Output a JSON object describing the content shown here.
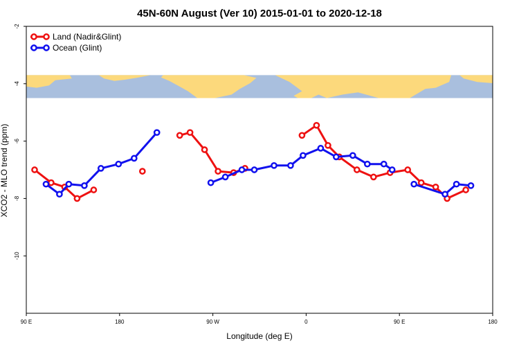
{
  "chart_data": {
    "type": "line",
    "title": "45N-60N August (Ver 10)   2015-01-01 to 2020-12-18",
    "xlabel": "Longitude (deg E)",
    "ylabel": "XCO2 - MLO trend (ppm)",
    "xlim": [
      90,
      540
    ],
    "ylim": [
      -12,
      -2
    ],
    "x_ticks": [
      {
        "value": 90,
        "label": "90 E"
      },
      {
        "value": 180,
        "label": "180"
      },
      {
        "value": 270,
        "label": "90 W"
      },
      {
        "value": 360,
        "label": "0"
      },
      {
        "value": 450,
        "label": "90 E"
      },
      {
        "value": 540,
        "label": "180"
      }
    ],
    "y_ticks": [
      {
        "value": -2,
        "label": "-2"
      },
      {
        "value": -4,
        "label": "-4"
      },
      {
        "value": -6,
        "label": "-6"
      },
      {
        "value": -8,
        "label": "-8"
      },
      {
        "value": -10,
        "label": "-10"
      }
    ],
    "map_band": {
      "y_top": -3.7,
      "y_bottom": -4.5,
      "ocean_color": "#a9bfde",
      "land_color": "#fcd97c"
    },
    "grid": false,
    "legend_position": "top-left",
    "series": [
      {
        "name": "Land (Nadir&Glint)",
        "color": "#ee1111",
        "segments": [
          [
            [
              98,
              -7.0
            ],
            [
              114,
              -7.45
            ],
            [
              127,
              -7.6
            ],
            [
              139,
              -8.0
            ],
            [
              155,
              -7.7
            ]
          ],
          [
            [
              202,
              -7.05
            ]
          ],
          [
            [
              238,
              -5.8
            ],
            [
              248,
              -5.7
            ],
            [
              262,
              -6.3
            ],
            [
              275,
              -7.05
            ],
            [
              290,
              -7.1
            ],
            [
              301,
              -6.95
            ]
          ],
          [
            [
              356,
              -5.8
            ],
            [
              370,
              -5.45
            ],
            [
              381,
              -6.15
            ],
            [
              392,
              -6.55
            ],
            [
              409,
              -7.0
            ],
            [
              425,
              -7.25
            ],
            [
              441,
              -7.1
            ],
            [
              458,
              -7.0
            ],
            [
              471,
              -7.45
            ],
            [
              485,
              -7.6
            ],
            [
              496,
              -8.0
            ],
            [
              514,
              -7.7
            ]
          ]
        ]
      },
      {
        "name": "Ocean (Glint)",
        "color": "#1111ee",
        "segments": [
          [
            [
              109,
              -7.5
            ],
            [
              122,
              -7.85
            ],
            [
              131,
              -7.5
            ],
            [
              146,
              -7.55
            ],
            [
              162,
              -6.95
            ],
            [
              179,
              -6.8
            ],
            [
              194,
              -6.6
            ],
            [
              216,
              -5.7
            ]
          ],
          [
            [
              268,
              -7.45
            ],
            [
              282,
              -7.25
            ],
            [
              298,
              -7.0
            ],
            [
              310,
              -7.0
            ],
            [
              329,
              -6.85
            ],
            [
              345,
              -6.85
            ],
            [
              357,
              -6.5
            ],
            [
              374,
              -6.25
            ],
            [
              389,
              -6.55
            ],
            [
              405,
              -6.5
            ],
            [
              419,
              -6.8
            ],
            [
              435,
              -6.8
            ],
            [
              443,
              -7.0
            ]
          ],
          [
            [
              464,
              -7.5
            ],
            [
              494,
              -7.85
            ],
            [
              505,
              -7.5
            ],
            [
              519,
              -7.55
            ]
          ]
        ]
      }
    ]
  }
}
